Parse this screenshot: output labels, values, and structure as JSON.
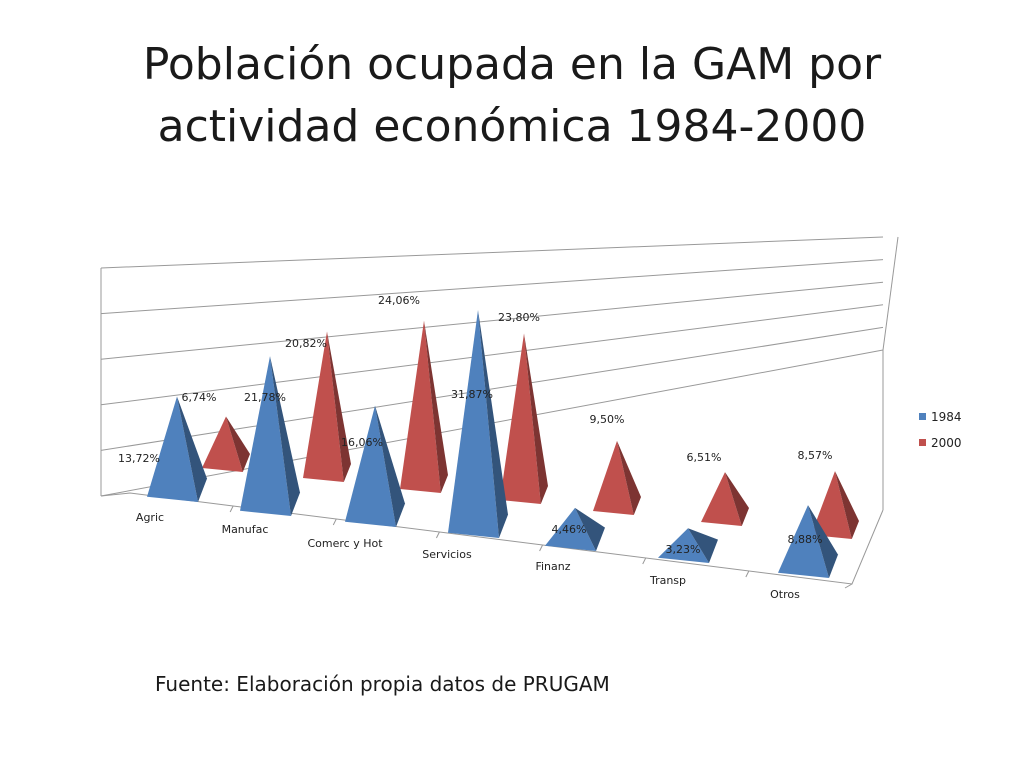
{
  "title": {
    "line1": "Población ocupada en la GAM por",
    "line2": "actividad económica 1984-2000"
  },
  "source": "Fuente: Elaboración propia datos de PRUGAM",
  "chart_data": {
    "type": "bar",
    "style": "3d-pyramid",
    "title": "Población ocupada en la GAM por actividad económica 1984-2000",
    "categories": [
      "Agric",
      "Manufac",
      "Comerc y Hot",
      "Servicios",
      "Finanz",
      "Transp",
      "Otros"
    ],
    "series": [
      {
        "name": "1984",
        "color": "#4f81bd",
        "values": [
          13.72,
          21.78,
          16.06,
          31.87,
          4.46,
          3.23,
          8.88
        ],
        "labels": [
          "13,72%",
          "21,78%",
          "16,06%",
          "31,87%",
          "4,46%",
          "3,23%",
          "8,88%"
        ]
      },
      {
        "name": "2000",
        "color": "#c0504d",
        "values": [
          6.74,
          20.82,
          24.06,
          23.8,
          9.5,
          6.51,
          8.57
        ],
        "labels": [
          "6,74%",
          "20,82%",
          "24,06%",
          "23,80%",
          "9,50%",
          "6,51%",
          "8,57%"
        ]
      }
    ],
    "ylim": [
      0,
      35
    ],
    "grid": true,
    "legend_position": "right"
  }
}
